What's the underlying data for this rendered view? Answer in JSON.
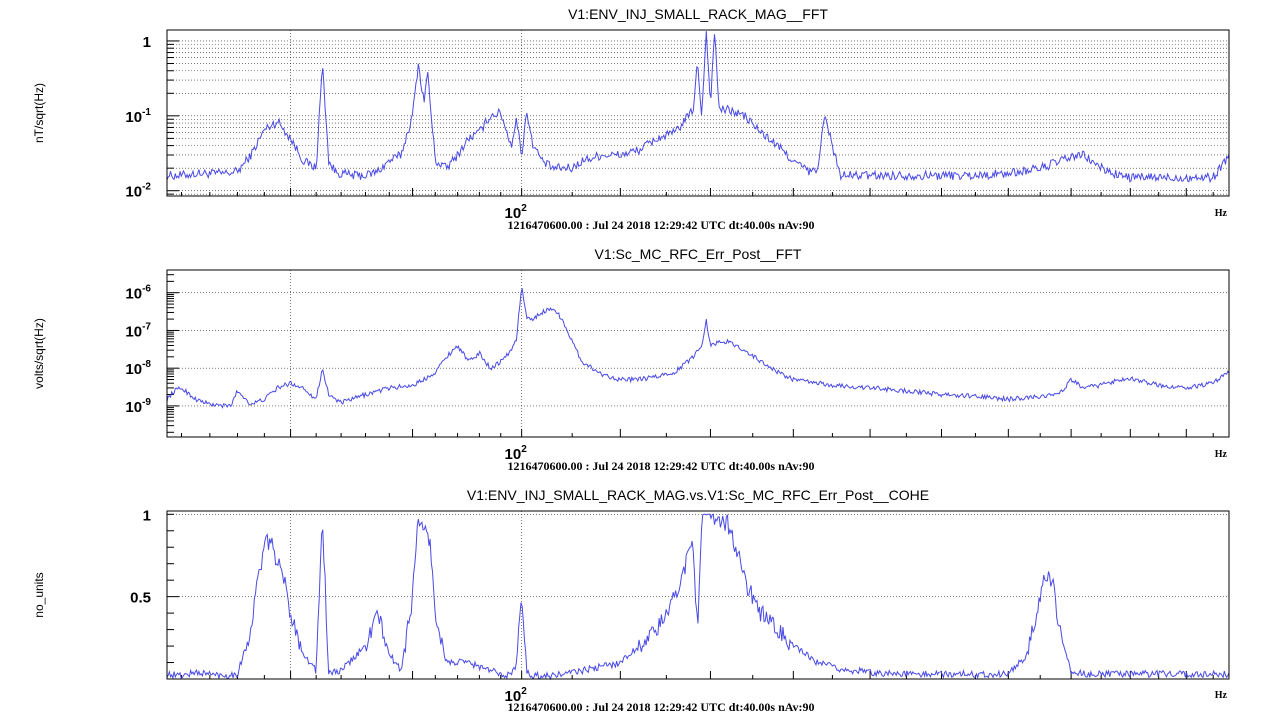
{
  "chart_data": [
    {
      "type": "line",
      "title": "V1:ENV_INJ_SMALL_RACK_MAG__FFT",
      "ylabel": "nT/sqrt(Hz)",
      "xlabel": "Hz",
      "xscale": "log",
      "yscale": "log",
      "xlim": [
        71,
        198
      ],
      "ylim": [
        0.0085,
        1.4
      ],
      "x_tick_labels": [
        {
          "value": 100,
          "base": "10",
          "exp": "2"
        }
      ],
      "y_tick_labels": [
        {
          "value": 1,
          "base": "1",
          "exp": ""
        },
        {
          "value": 0.1,
          "base": "10",
          "exp": "-1"
        },
        {
          "value": 0.01,
          "base": "10",
          "exp": "-2"
        }
      ],
      "footer": "1216470600.00 : Jul 24 2018 12:29:42 UTC dt:40.00s nAv:90",
      "grid": true,
      "color": "#4a4ae6",
      "series": [
        {
          "x": [
            71,
            72,
            73,
            74,
            75,
            76,
            77,
            78,
            79,
            80,
            81,
            82,
            82.5,
            83,
            83.5,
            84,
            85,
            86,
            87,
            88,
            89,
            90,
            90.5,
            91,
            91.3,
            91.7,
            92,
            93,
            94,
            95,
            96,
            97,
            98,
            99,
            99.5,
            100,
            100.5,
            101,
            102,
            103,
            104,
            105,
            106,
            108,
            110,
            112,
            114,
            116,
            118,
            118.5,
            119,
            119.5,
            120,
            120.5,
            121,
            122,
            123,
            124,
            126,
            128,
            130,
            132,
            133,
            134,
            136,
            138,
            140,
            145,
            150,
            155,
            160,
            165,
            170,
            172,
            175,
            178,
            180,
            185,
            190,
            195,
            198
          ],
          "y": [
            0.016,
            0.016,
            0.017,
            0.017,
            0.017,
            0.018,
            0.03,
            0.065,
            0.085,
            0.05,
            0.025,
            0.02,
            0.5,
            0.025,
            0.018,
            0.017,
            0.016,
            0.016,
            0.018,
            0.025,
            0.03,
            0.1,
            0.5,
            0.15,
            0.4,
            0.08,
            0.025,
            0.02,
            0.03,
            0.05,
            0.06,
            0.1,
            0.11,
            0.04,
            0.09,
            0.03,
            0.12,
            0.045,
            0.025,
            0.02,
            0.02,
            0.02,
            0.025,
            0.03,
            0.03,
            0.035,
            0.05,
            0.06,
            0.12,
            0.5,
            0.1,
            1.4,
            0.15,
            1.4,
            0.12,
            0.12,
            0.11,
            0.1,
            0.06,
            0.04,
            0.025,
            0.018,
            0.018,
            0.1,
            0.016,
            0.016,
            0.016,
            0.016,
            0.016,
            0.016,
            0.017,
            0.02,
            0.028,
            0.03,
            0.02,
            0.016,
            0.015,
            0.015,
            0.015,
            0.015,
            0.03
          ]
        }
      ]
    },
    {
      "type": "line",
      "title": "V1:Sc_MC_RFC_Err_Post__FFT",
      "ylabel": "volts/sqrt(Hz)",
      "xlabel": "Hz",
      "xscale": "log",
      "yscale": "log",
      "xlim": [
        71,
        198
      ],
      "ylim": [
        1.5e-10,
        4e-06
      ],
      "x_tick_labels": [
        {
          "value": 100,
          "base": "10",
          "exp": "2"
        }
      ],
      "y_tick_labels": [
        {
          "value": 1e-06,
          "base": "10",
          "exp": "-6"
        },
        {
          "value": 1e-07,
          "base": "10",
          "exp": "-7"
        },
        {
          "value": 1e-08,
          "base": "10",
          "exp": "-8"
        },
        {
          "value": 1e-09,
          "base": "10",
          "exp": "-9"
        }
      ],
      "footer": "1216470600.00 : Jul 24 2018 12:29:42 UTC dt:40.00s nAv:90",
      "grid": true,
      "color": "#4a4ae6",
      "series": [
        {
          "x": [
            71,
            71.5,
            72,
            73,
            74,
            75,
            75.5,
            76,
            77,
            78,
            79,
            80,
            81,
            82,
            82.5,
            83,
            84,
            86,
            88,
            90,
            91,
            92,
            93,
            94,
            95,
            96,
            97,
            98,
            99,
            99.5,
            100,
            100.5,
            101,
            102,
            103,
            104,
            105,
            106,
            108,
            110,
            112,
            114,
            116,
            118,
            119,
            119.5,
            120,
            121,
            122,
            123,
            124,
            126,
            128,
            130,
            135,
            140,
            145,
            150,
            155,
            160,
            165,
            168,
            170,
            172,
            175,
            178,
            180,
            185,
            190,
            195,
            198
          ],
          "y": [
            1.5e-09,
            2.5e-09,
            3e-09,
            1.5e-09,
            1.1e-09,
            1e-09,
            1e-09,
            2.5e-09,
            1.1e-09,
            1.5e-09,
            3e-09,
            4e-09,
            3e-09,
            1.5e-09,
            1e-08,
            2e-09,
            1.2e-09,
            2e-09,
            3e-09,
            3.5e-09,
            5e-09,
            8e-09,
            2e-08,
            4e-08,
            1.5e-08,
            2.5e-08,
            1e-08,
            1.5e-08,
            3e-08,
            6e-08,
            1.5e-06,
            2e-07,
            2e-07,
            3e-07,
            4e-07,
            2e-07,
            5e-08,
            1.5e-08,
            7e-09,
            5e-09,
            5e-09,
            6e-09,
            8e-09,
            2e-08,
            4e-08,
            2e-07,
            4e-08,
            5e-08,
            5e-08,
            4e-08,
            3e-08,
            1.5e-08,
            8e-09,
            5e-09,
            3.5e-09,
            3e-09,
            2.5e-09,
            2e-09,
            1.8e-09,
            1.5e-09,
            1.8e-09,
            2e-09,
            5e-09,
            3e-09,
            3.5e-09,
            5e-09,
            5.5e-09,
            3.5e-09,
            3e-09,
            4e-09,
            8e-09
          ]
        }
      ]
    },
    {
      "type": "line",
      "title": "V1:ENV_INJ_SMALL_RACK_MAG.vs.V1:Sc_MC_RFC_Err_Post__COHE",
      "ylabel": "no_units",
      "xlabel": "Hz",
      "xscale": "log",
      "yscale": "linear",
      "xlim": [
        71,
        198
      ],
      "ylim": [
        0,
        1.02
      ],
      "x_tick_labels": [
        {
          "value": 100,
          "base": "10",
          "exp": "2"
        }
      ],
      "y_tick_labels": [
        {
          "value": 1,
          "base": "1",
          "exp": ""
        },
        {
          "value": 0.5,
          "base": "0.5",
          "exp": ""
        }
      ],
      "footer": "1216470600.00 : Jul 24 2018 12:29:42 UTC dt:40.00s nAv:90",
      "grid": true,
      "color": "#4a4ae6",
      "series": [
        {
          "x": [
            71,
            72,
            73,
            74,
            75,
            76,
            77,
            77.5,
            78,
            78.5,
            79,
            79.5,
            80,
            81,
            82,
            82.5,
            83,
            84,
            86,
            87,
            88,
            89,
            90,
            90.5,
            91,
            91.5,
            92,
            93,
            95,
            97,
            99,
            99.5,
            100,
            100.5,
            101,
            103,
            106,
            110,
            114,
            116,
            118,
            118.5,
            119,
            119.5,
            120,
            121,
            122,
            123,
            124,
            126,
            128,
            130,
            133,
            136,
            140,
            145,
            150,
            155,
            160,
            163,
            165,
            166,
            167,
            168,
            170,
            172,
            175,
            180,
            185,
            190,
            195,
            198
          ],
          "y": [
            0.03,
            0.02,
            0.04,
            0.03,
            0.02,
            0.03,
            0.3,
            0.6,
            0.8,
            0.85,
            0.7,
            0.6,
            0.4,
            0.15,
            0.05,
            0.98,
            0.03,
            0.05,
            0.2,
            0.4,
            0.15,
            0.05,
            0.5,
            0.98,
            0.9,
            0.85,
            0.4,
            0.1,
            0.1,
            0.05,
            0.02,
            0.1,
            0.5,
            0.05,
            0.02,
            0.02,
            0.05,
            0.1,
            0.3,
            0.5,
            0.85,
            0.3,
            0.95,
            0.97,
            0.97,
            0.97,
            0.95,
            0.8,
            0.6,
            0.4,
            0.3,
            0.2,
            0.1,
            0.06,
            0.04,
            0.03,
            0.03,
            0.03,
            0.03,
            0.15,
            0.5,
            0.65,
            0.6,
            0.3,
            0.05,
            0.03,
            0.03,
            0.03,
            0.03,
            0.03,
            0.03,
            0.03
          ]
        }
      ]
    }
  ]
}
